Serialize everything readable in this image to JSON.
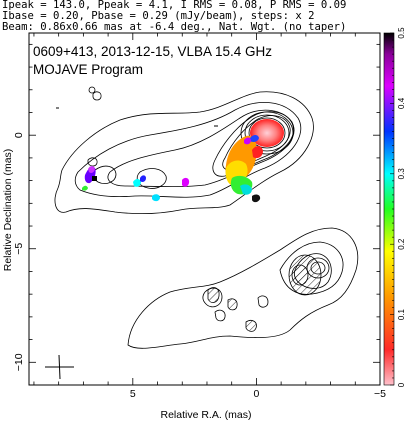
{
  "header": {
    "line1": "Ipeak = 143.0, Ppeak = 4.1, I RMS = 0.08, P RMS = 0.09",
    "line2": "Ibase = 0.20, Pbase = 0.29 (mJy/beam), steps: x 2",
    "line3": "Beam: 0.86x0.66 mas at -6.4 deg., Nat. Wgt. (no taper)"
  },
  "chart_data": {
    "type": "contour",
    "title": "0609+413, 2013-12-15, VLBA 15.4 GHz",
    "subtitle": "MOJAVE Program",
    "xlabel": "Relative R.A. (mas)",
    "ylabel": "Relative Declination (mas)",
    "xlim": [
      9.2,
      -5.0
    ],
    "ylim": [
      -11.0,
      4.5
    ],
    "x_ticks": [
      5,
      0,
      -5
    ],
    "y_ticks": [
      0,
      -5,
      -10
    ],
    "x_tick_labels": [
      "5",
      "0",
      "−5"
    ],
    "y_tick_labels": [
      "0",
      "−5",
      "−10"
    ],
    "colorbar": {
      "range": [
        0,
        0.5
      ],
      "ticks": [
        0,
        0.1,
        0.2,
        0.3,
        0.4,
        0.5
      ],
      "tick_labels": [
        "0",
        "0.1",
        "0.2",
        "0.3",
        "0.4",
        "0.5"
      ],
      "colors": [
        "#ffb6c1",
        "#ff0000",
        "#ffa500",
        "#ffff00",
        "#00ff00",
        "#00ffff",
        "#0000ff",
        "#ff00ff",
        "#800080",
        "#000000"
      ]
    },
    "core": {
      "x": 0.0,
      "y": 0.0
    }
  }
}
